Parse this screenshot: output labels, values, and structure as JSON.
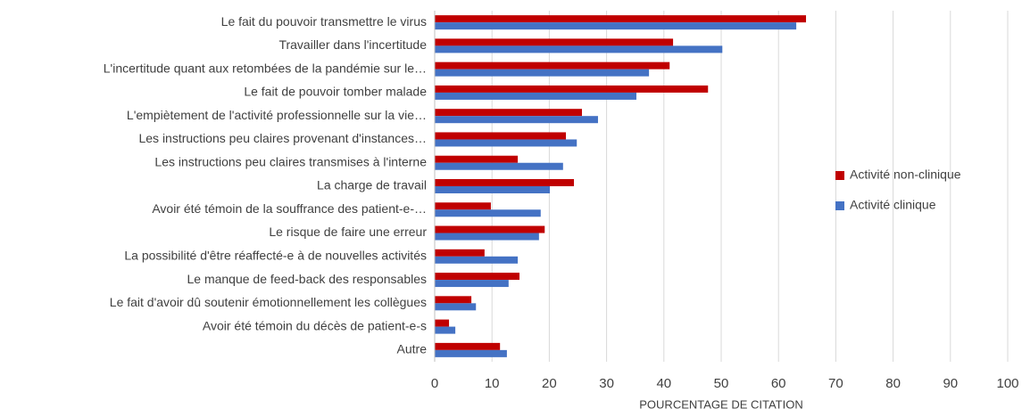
{
  "chart_data": {
    "type": "hbar",
    "xlabel": "POURCENTAGE DE CITATION",
    "categories": [
      "Le fait du pouvoir transmettre le virus",
      "Travailler dans l'incertitude",
      "L'incertitude quant aux retombées de la pandémie sur le…",
      "Le fait de pouvoir tomber malade",
      "L'empiètement de l'activité professionnelle sur la vie…",
      "Les instructions peu claires provenant d'instances…",
      "Les instructions peu claires transmises à l'interne",
      "La charge de travail",
      "Avoir été témoin de la souffrance des patient-e-…",
      "Le risque de faire une erreur",
      "La possibilité d'être réaffecté-e à de nouvelles activités",
      "Le manque de feed-back des responsables",
      "Le fait d'avoir dû soutenir émotionnellement les collègues",
      "Avoir été témoin du décès de patient-e-s",
      "Autre"
    ],
    "series": [
      {
        "name": "Activité non-clinique",
        "color": "#c00000",
        "values": [
          64.8,
          41.6,
          41.0,
          47.7,
          25.7,
          22.9,
          14.5,
          24.3,
          9.8,
          19.2,
          8.7,
          14.8,
          6.4,
          2.5,
          11.4
        ]
      },
      {
        "name": "Activité clinique",
        "color": "#4472c4",
        "values": [
          63.1,
          50.2,
          37.4,
          35.2,
          28.5,
          24.8,
          22.4,
          20.1,
          18.5,
          18.2,
          14.5,
          12.9,
          7.2,
          3.6,
          12.6
        ]
      }
    ],
    "xlim": [
      0,
      100
    ],
    "xticks": [
      0,
      10,
      20,
      30,
      40,
      50,
      60,
      70,
      80,
      90,
      100
    ],
    "grid": true,
    "legend": "right"
  }
}
